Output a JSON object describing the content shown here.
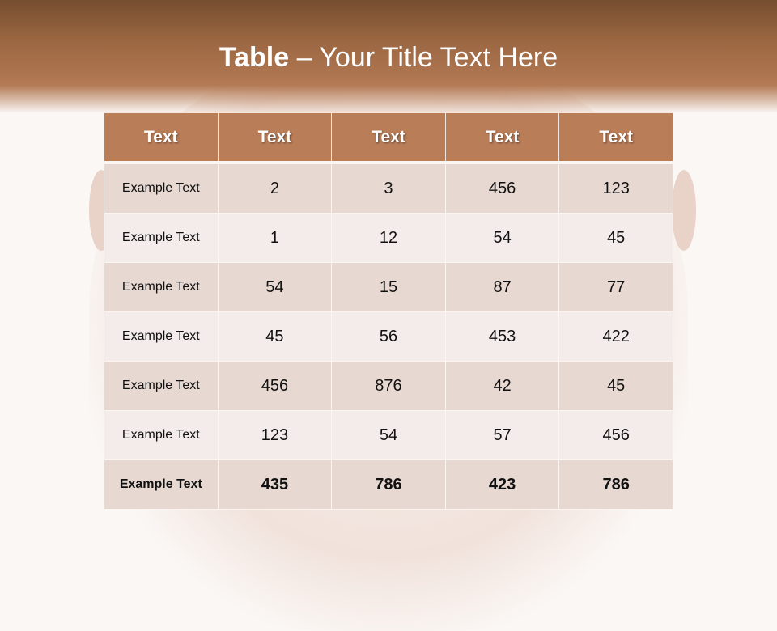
{
  "slide": {
    "title_bold": "Table",
    "title_rest": " – Your Title Text Here"
  },
  "table": {
    "headers": [
      "Text",
      "Text",
      "Text",
      "Text",
      "Text"
    ],
    "rows": [
      [
        "Example Text",
        "2",
        "3",
        "456",
        "123"
      ],
      [
        "Example Text",
        "1",
        "12",
        "54",
        "45"
      ],
      [
        "Example Text",
        "54",
        "15",
        "87",
        "77"
      ],
      [
        "Example Text",
        "45",
        "56",
        "453",
        "422"
      ],
      [
        "Example Text",
        "456",
        "876",
        "42",
        "45"
      ],
      [
        "Example Text",
        "123",
        "54",
        "57",
        "456"
      ],
      [
        "Example Text",
        "435",
        "786",
        "423",
        "786"
      ]
    ]
  },
  "colors": {
    "header": "#b97d58",
    "row_dark": "#e7d8d1",
    "row_light": "#f4ecea",
    "title_bar": "#9a6641"
  }
}
